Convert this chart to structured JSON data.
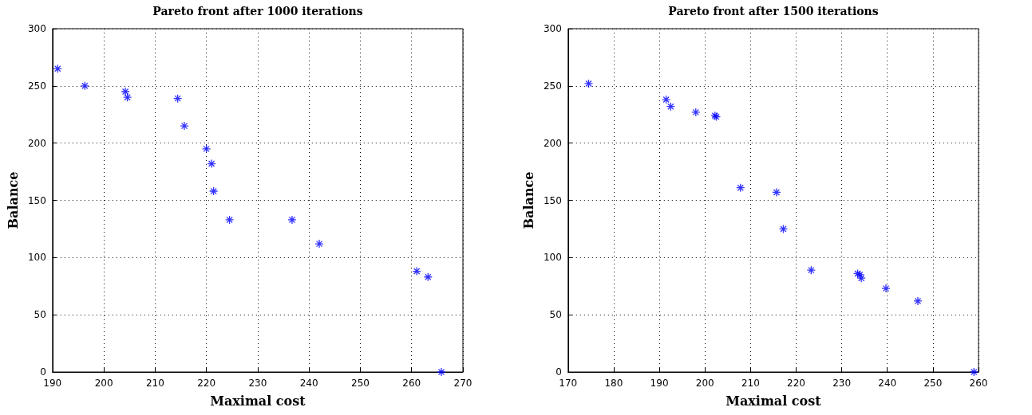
{
  "chart_data": [
    {
      "type": "scatter",
      "title": "Pareto front after 1000 iterations",
      "xlabel": "Maximal cost",
      "ylabel": "Balance",
      "marker": "cross",
      "grid": true,
      "xlim": [
        190,
        270
      ],
      "xticks": [
        190,
        200,
        210,
        220,
        230,
        240,
        250,
        260,
        270
      ],
      "ylim": [
        0,
        300
      ],
      "yticks": [
        0,
        50,
        100,
        150,
        200,
        250,
        300
      ],
      "series": [
        {
          "color": "#0000ff",
          "x": [
            191,
            196.3,
            204.2,
            204.6,
            214.4,
            215.7,
            220,
            221,
            221.4,
            224.5,
            236.7,
            242,
            261,
            263.2,
            265.8
          ],
          "values": [
            265,
            250,
            245,
            240,
            239,
            215,
            195,
            182,
            158,
            133,
            133,
            112,
            88,
            83,
            0
          ]
        }
      ]
    },
    {
      "type": "scatter",
      "title": "Pareto front after 1500 iterations",
      "xlabel": "Maximal cost",
      "ylabel": "Balance",
      "marker": "cross",
      "grid": true,
      "xlim": [
        170,
        260
      ],
      "xticks": [
        170,
        180,
        190,
        200,
        210,
        220,
        230,
        240,
        250,
        260
      ],
      "ylim": [
        0,
        300
      ],
      "yticks": [
        0,
        50,
        100,
        150,
        200,
        250,
        300
      ],
      "series": [
        {
          "color": "#0000ff",
          "x": [
            174.5,
            191.5,
            192.5,
            198,
            202.2,
            202.5,
            207.8,
            215.7,
            217.2,
            223.3,
            233.5,
            234,
            234.3,
            239.7,
            246.7,
            259
          ],
          "values": [
            252,
            238,
            232,
            227,
            224,
            223,
            161,
            157,
            125,
            89,
            86,
            85,
            82,
            73,
            62,
            0
          ]
        }
      ]
    }
  ]
}
